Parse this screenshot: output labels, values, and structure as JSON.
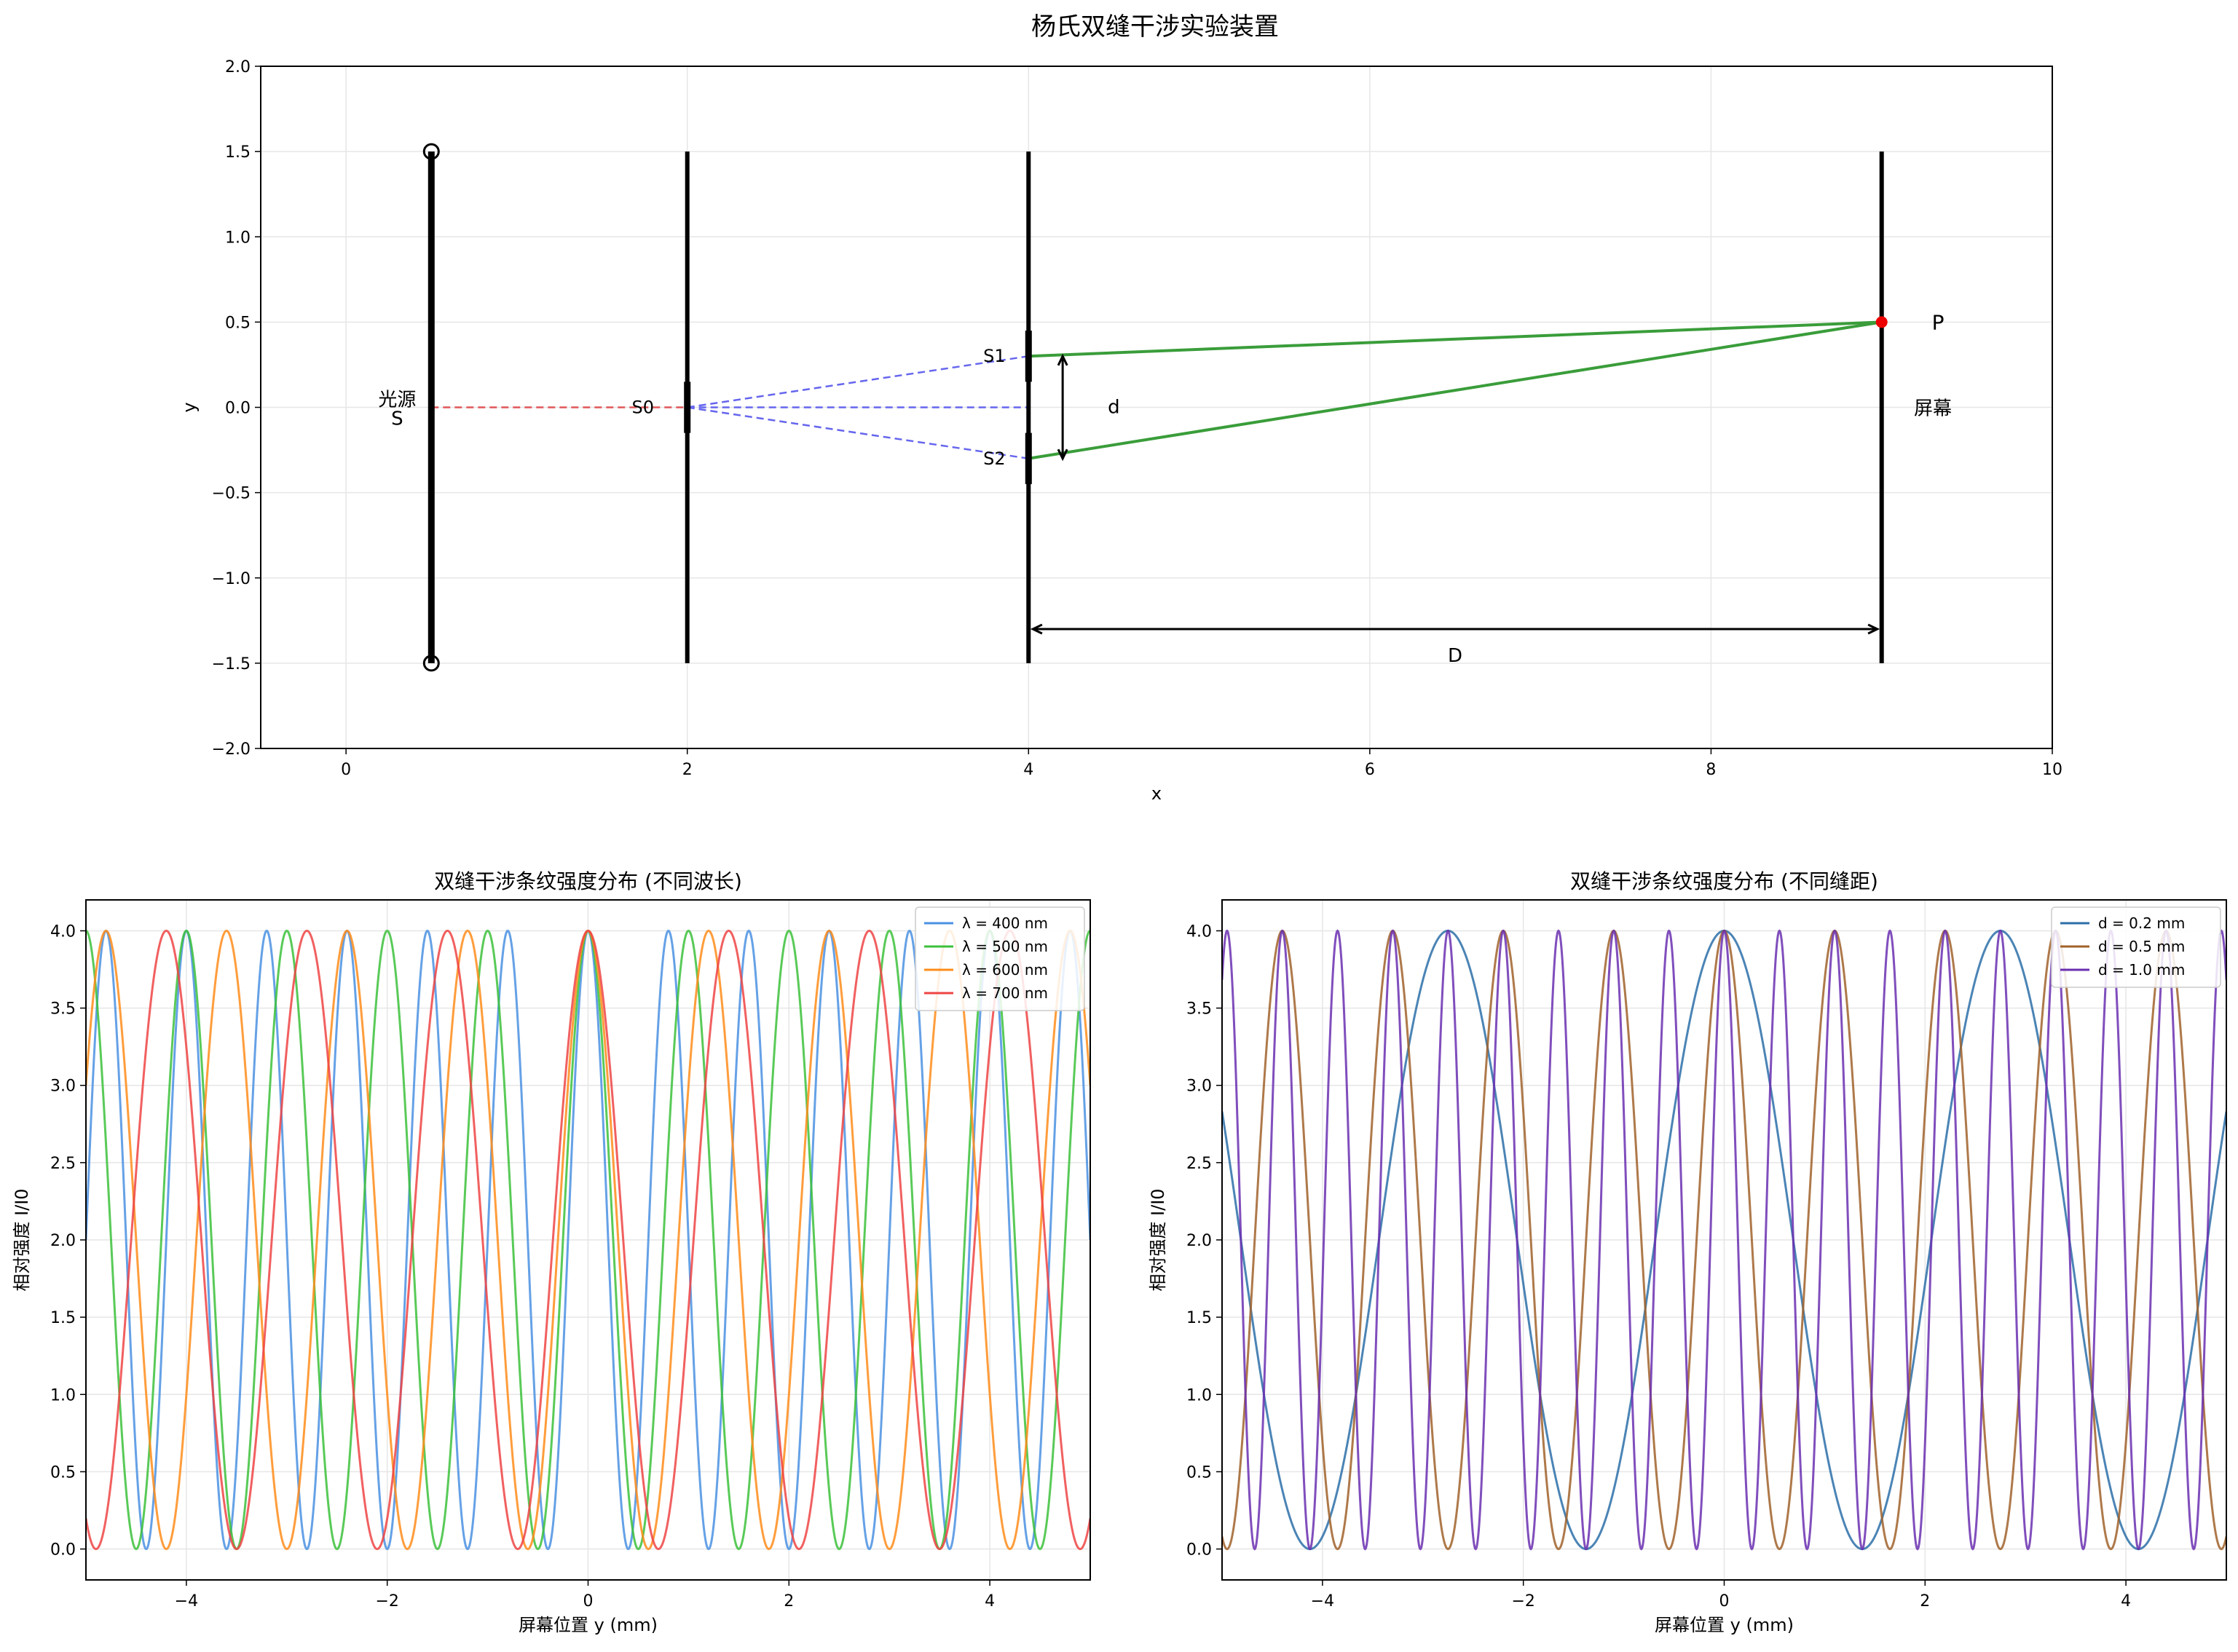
{
  "figure": {
    "title": "杨氏双缝干涉实验装置"
  },
  "chart_data": [
    {
      "type": "line",
      "title": "",
      "xlabel": "x",
      "ylabel": "y",
      "xlim": [
        -0.5,
        10
      ],
      "ylim": [
        -2.0,
        2.0
      ],
      "x_ticks": [
        0,
        2,
        4,
        6,
        8,
        10
      ],
      "y_ticks": [
        -2.0,
        -1.5,
        -1.0,
        -0.5,
        0.0,
        0.5,
        1.0,
        1.5,
        2.0
      ],
      "grid": true,
      "elements": {
        "source_bar": {
          "x": 0.5,
          "y": [
            -1.5,
            1.5
          ],
          "end_markers": [
            1.5,
            -1.5
          ]
        },
        "single_slit_screen": {
          "x": 2.0,
          "y": [
            -1.5,
            1.5
          ]
        },
        "double_slit_screen": {
          "x": 4.0,
          "y": [
            -1.5,
            1.5
          ],
          "slits_y": [
            0.3,
            -0.3
          ]
        },
        "observation_screen": {
          "x": 9.0,
          "y": [
            -1.5,
            1.5
          ]
        },
        "source_ray": {
          "x": [
            0.5,
            2.0
          ],
          "y": [
            0,
            0
          ],
          "color": "#e15759"
        },
        "diffracted_rays": [
          {
            "x": [
              2.0,
              4.0
            ],
            "y": [
              0,
              0.3
            ]
          },
          {
            "x": [
              2.0,
              4.0
            ],
            "y": [
              0,
              0
            ]
          },
          {
            "x": [
              2.0,
              4.0
            ],
            "y": [
              0,
              -0.3
            ]
          }
        ],
        "interference_paths": [
          {
            "x": [
              4.0,
              9.0
            ],
            "y": [
              0.3,
              0.5
            ]
          },
          {
            "x": [
              4.0,
              9.0
            ],
            "y": [
              -0.3,
              0.5
            ]
          }
        ],
        "point_P": {
          "x": 9.0,
          "y": 0.5
        },
        "d_arrow": {
          "x": 4.2,
          "y": [
            -0.3,
            0.3
          ]
        },
        "D_arrow": {
          "y": -1.3,
          "x": [
            4.0,
            9.0
          ]
        }
      },
      "labels": {
        "source": "光源",
        "S": "S",
        "S0": "S0",
        "S1": "S1",
        "S2": "S2",
        "d": "d",
        "D": "D",
        "P": "P",
        "screen": "屏幕"
      }
    },
    {
      "type": "line",
      "title": "双缝干涉条纹强度分布 (不同波长)",
      "xlabel": "屏幕位置 y (mm)",
      "ylabel": "相对强度 I/I0",
      "xlim": [
        -5,
        5
      ],
      "ylim": [
        -0.2,
        4.2
      ],
      "x_ticks": [
        -4,
        -2,
        0,
        2,
        4
      ],
      "y_ticks": [
        0.0,
        0.5,
        1.0,
        1.5,
        2.0,
        2.5,
        3.0,
        3.5,
        4.0
      ],
      "grid": true,
      "legend": "top-right",
      "formula": "I = 4cos^2(pi*y/fringe)",
      "series": [
        {
          "name": "λ = 400 nm",
          "color": "#4a90e2",
          "fringe_mm": 0.8
        },
        {
          "name": "λ = 500 nm",
          "color": "#3cc13b",
          "fringe_mm": 1.0
        },
        {
          "name": "λ = 600 nm",
          "color": "#ff8c1a",
          "fringe_mm": 1.2
        },
        {
          "name": "λ = 700 nm",
          "color": "#ee4444",
          "fringe_mm": 1.4
        }
      ]
    },
    {
      "type": "line",
      "title": "双缝干涉条纹强度分布 (不同缝距)",
      "xlabel": "屏幕位置 y (mm)",
      "ylabel": "相对强度 I/I0",
      "xlim": [
        -5,
        5
      ],
      "ylim": [
        -0.2,
        4.2
      ],
      "x_ticks": [
        -4,
        -2,
        0,
        2,
        4
      ],
      "y_ticks": [
        0.0,
        0.5,
        1.0,
        1.5,
        2.0,
        2.5,
        3.0,
        3.5,
        4.0
      ],
      "grid": true,
      "legend": "top-right",
      "formula": "I = 4cos^2(pi*y/fringe)",
      "series": [
        {
          "name": "d = 0.2 mm",
          "color": "#2c6ea8",
          "fringe_mm": 2.75
        },
        {
          "name": "d = 0.5 mm",
          "color": "#a0612a",
          "fringe_mm": 1.1
        },
        {
          "name": "d = 1.0 mm",
          "color": "#6a2fb0",
          "fringe_mm": 0.55
        }
      ]
    }
  ]
}
